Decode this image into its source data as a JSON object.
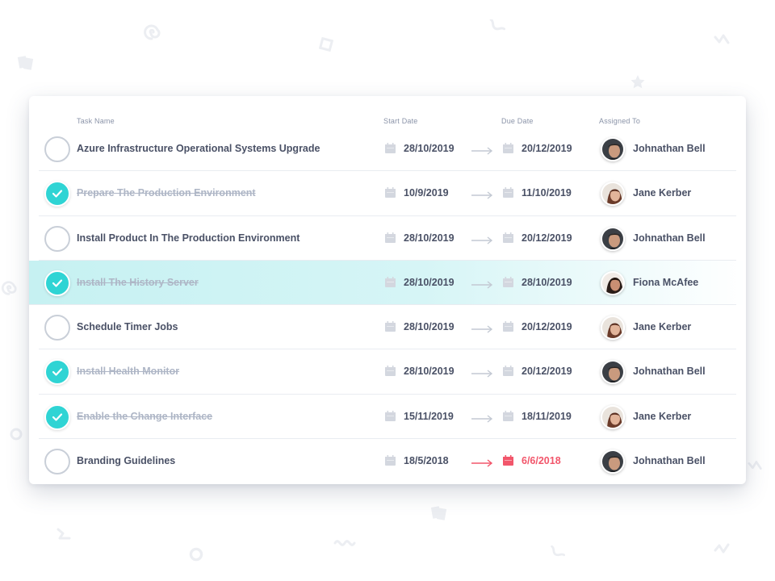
{
  "table": {
    "headers": {
      "task_name": "Task Name",
      "start_date": "Start Date",
      "due_date": "Due Date",
      "assigned_to": "Assigned To"
    },
    "rows": [
      {
        "task": "Azure Infrastructure Operational Systems Upgrade",
        "done": false,
        "start": "28/10/2019",
        "due": "20/12/2019",
        "assignee": "Johnathan Bell",
        "avatar": "male",
        "overdue": false,
        "highlight": false
      },
      {
        "task": "Prepare The Production Environment",
        "done": true,
        "start": "10/9/2019",
        "due": "11/10/2019",
        "assignee": "Jane Kerber",
        "avatar": "female-a",
        "overdue": false,
        "highlight": false
      },
      {
        "task": "Install Product In The Production Environment",
        "done": false,
        "start": "28/10/2019",
        "due": "20/12/2019",
        "assignee": "Johnathan Bell",
        "avatar": "male",
        "overdue": false,
        "highlight": false
      },
      {
        "task": "Install The History Server",
        "done": true,
        "start": "28/10/2019",
        "due": "28/10/2019",
        "assignee": "Fiona McAfee",
        "avatar": "female-b",
        "overdue": false,
        "highlight": true
      },
      {
        "task": "Schedule Timer Jobs",
        "done": false,
        "start": "28/10/2019",
        "due": "20/12/2019",
        "assignee": "Jane Kerber",
        "avatar": "female-a",
        "overdue": false,
        "highlight": false
      },
      {
        "task": "Install Health Monitor",
        "done": true,
        "start": "28/10/2019",
        "due": "20/12/2019",
        "assignee": "Johnathan Bell",
        "avatar": "male",
        "overdue": false,
        "highlight": false
      },
      {
        "task": "Enable the Change Interface",
        "done": true,
        "start": "15/11/2019",
        "due": "18/11/2019",
        "assignee": "Jane Kerber",
        "avatar": "female-a",
        "overdue": false,
        "highlight": false
      },
      {
        "task": "Branding Guidelines",
        "done": false,
        "start": "18/5/2018",
        "due": "6/6/2018",
        "assignee": "Johnathan Bell",
        "avatar": "male",
        "overdue": true,
        "highlight": false
      }
    ]
  },
  "colors": {
    "accent": "#2fd4d4",
    "overdue": "#f2566b",
    "text": "#4a5166",
    "muted": "#aeb6c6"
  },
  "icons": {
    "checkbox": "check-icon",
    "calendar": "calendar-icon",
    "arrow": "arrow-right-icon"
  }
}
